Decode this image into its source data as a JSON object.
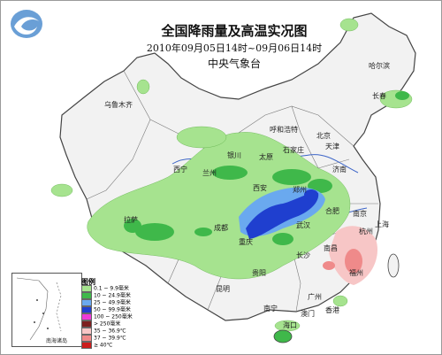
{
  "title": "全国降雨量及高温实况图",
  "time_range": "2010年09月05日14时~09月06日14时",
  "issuer": "中央气象台",
  "legend": {
    "title": "图例",
    "items": [
      {
        "label": "0.1 ~ 9.9毫米",
        "color": "#a6e38f"
      },
      {
        "label": "10 ~ 24.9毫米",
        "color": "#3fb84a"
      },
      {
        "label": "25 ~ 49.9毫米",
        "color": "#6aa9ef"
      },
      {
        "label": "50 ~ 99.9毫米",
        "color": "#1f3fcf"
      },
      {
        "label": "100 ~ 250毫米",
        "color": "#ee3ad8"
      },
      {
        "label": "> 250毫米",
        "color": "#7d1f1f"
      },
      {
        "label": "35 ~ 36.9℃",
        "color": "#f7c6c6"
      },
      {
        "label": "37 ~ 39.9℃",
        "color": "#ef8a8a"
      },
      {
        "label": "≥ 40℃",
        "color": "#cc1d1d"
      }
    ]
  },
  "inset_label": "南海诸岛",
  "places": [
    {
      "name": "乌鲁木齐",
      "key": "urumqi"
    },
    {
      "name": "哈尔滨",
      "key": "harbin"
    },
    {
      "name": "长春",
      "key": "changchun"
    },
    {
      "name": "呼和浩特",
      "key": "hohhot"
    },
    {
      "name": "北京",
      "key": "beijing"
    },
    {
      "name": "天津",
      "key": "tianjin"
    },
    {
      "name": "石家庄",
      "key": "shijiazhuang"
    },
    {
      "name": "太原",
      "key": "taiyuan"
    },
    {
      "name": "银川",
      "key": "yinchuan"
    },
    {
      "name": "西宁",
      "key": "xining"
    },
    {
      "name": "兰州",
      "key": "lanzhou"
    },
    {
      "name": "济南",
      "key": "jinan"
    },
    {
      "name": "郑州",
      "key": "zhengzhou"
    },
    {
      "name": "西安",
      "key": "xian"
    },
    {
      "name": "拉萨",
      "key": "lhasa"
    },
    {
      "name": "成都",
      "key": "chengdu"
    },
    {
      "name": "重庆",
      "key": "chongqing"
    },
    {
      "name": "合肥",
      "key": "hefei"
    },
    {
      "name": "南京",
      "key": "nanjing"
    },
    {
      "name": "上海",
      "key": "shanghai"
    },
    {
      "name": "杭州",
      "key": "hangzhou"
    },
    {
      "name": "武汉",
      "key": "wuhan"
    },
    {
      "name": "长沙",
      "key": "changsha"
    },
    {
      "name": "南昌",
      "key": "nanchang"
    },
    {
      "name": "福州",
      "key": "fuzhou"
    },
    {
      "name": "贵阳",
      "key": "guiyang"
    },
    {
      "name": "昆明",
      "key": "kunming"
    },
    {
      "name": "南宁",
      "key": "nanning"
    },
    {
      "name": "广州",
      "key": "guangzhou"
    },
    {
      "name": "香港",
      "key": "hongkong"
    },
    {
      "name": "澳门",
      "key": "macau"
    },
    {
      "name": "海口",
      "key": "haikou"
    }
  ]
}
